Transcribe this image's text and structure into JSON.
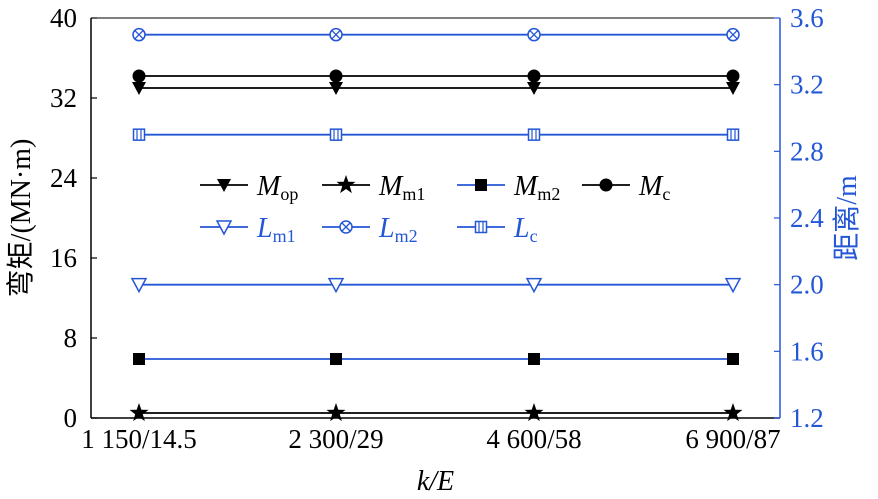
{
  "chart_data": {
    "type": "line",
    "categories": [
      "1 150/14.5",
      "2 300/29",
      "4 600/58",
      "6 900/87"
    ],
    "xlabel": "k/E",
    "ylabel_left": "弯矩/(MN·m)",
    "ylabel_right": "距离/m",
    "ylim_left": [
      0,
      40
    ],
    "yticks_left": [
      0,
      8,
      16,
      24,
      32,
      40
    ],
    "ylim_right": [
      1.2,
      3.6
    ],
    "yticks_right": [
      "1.2",
      "1.6",
      "2.0",
      "2.4",
      "2.8",
      "3.2",
      "3.6"
    ],
    "grid": false,
    "legend_position": "center",
    "series": [
      {
        "name": "M",
        "sub": "op",
        "axis": "left",
        "values": [
          33.0,
          33.0,
          33.0,
          33.0
        ],
        "marker": "triangle-down-filled",
        "color": "#000000"
      },
      {
        "name": "M",
        "sub": "m1",
        "axis": "left",
        "values": [
          0.5,
          0.5,
          0.5,
          0.5
        ],
        "marker": "star-filled",
        "color": "#000000"
      },
      {
        "name": "M",
        "sub": "m2",
        "axis": "left",
        "values": [
          5.9,
          5.9,
          5.9,
          5.9
        ],
        "marker": "square-filled",
        "color": "#000000",
        "line_color": "#2457d6"
      },
      {
        "name": "M",
        "sub": "c",
        "axis": "left",
        "values": [
          34.2,
          34.2,
          34.2,
          34.2
        ],
        "marker": "circle-filled",
        "color": "#000000"
      },
      {
        "name": "L",
        "sub": "m1",
        "axis": "right",
        "values": [
          2.0,
          2.0,
          2.0,
          2.0
        ],
        "marker": "triangle-down-open",
        "color": "#2457d6"
      },
      {
        "name": "L",
        "sub": "m2",
        "axis": "right",
        "values": [
          3.5,
          3.5,
          3.5,
          3.5
        ],
        "marker": "circle-x",
        "color": "#2457d6"
      },
      {
        "name": "L",
        "sub": "c",
        "axis": "right",
        "values": [
          2.9,
          2.9,
          2.9,
          2.9
        ],
        "marker": "square-open",
        "color": "#2457d6"
      }
    ]
  }
}
